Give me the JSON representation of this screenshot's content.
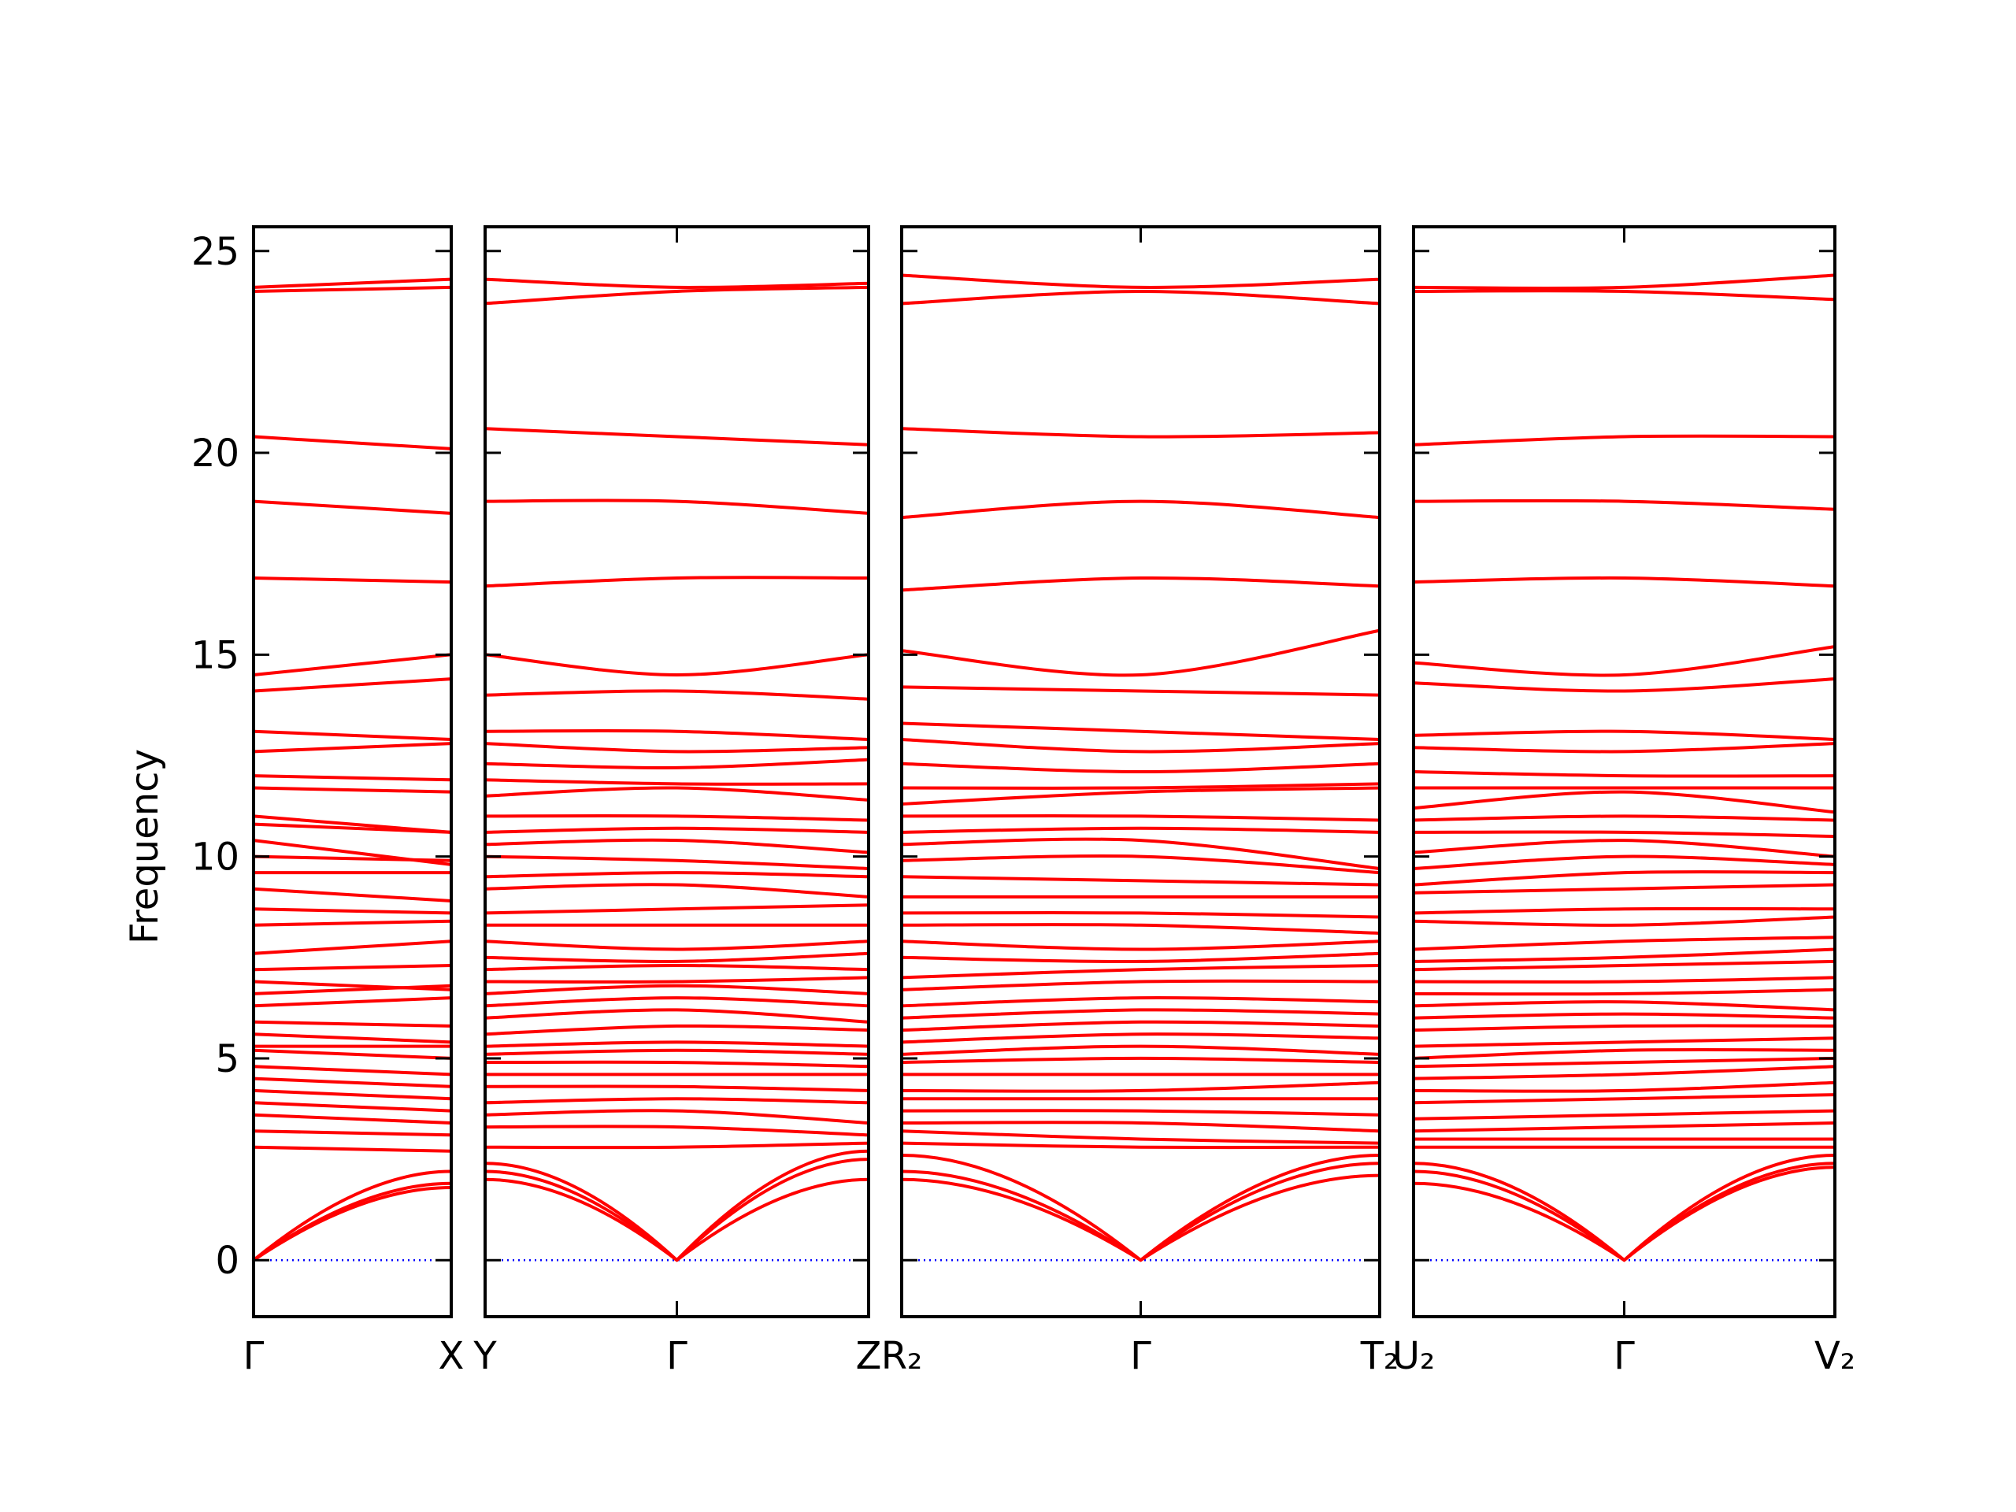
{
  "chart_data": {
    "type": "line",
    "ylabel": "Frequency",
    "ylim": [
      -1.4,
      25.6
    ],
    "yticks": [
      0,
      5,
      10,
      15,
      20,
      25
    ],
    "colors": {
      "band": "#ff0000",
      "zero_line": "#0000ff"
    },
    "panels": [
      {
        "labels": [
          "Γ",
          "X"
        ],
        "modes": [
          [
            24.1,
            24.3
          ],
          [
            24.0,
            24.1
          ],
          [
            20.4,
            20.1
          ],
          [
            18.8,
            18.5
          ],
          [
            16.9,
            16.8
          ],
          [
            14.5,
            15.0
          ],
          [
            14.1,
            14.4
          ],
          [
            13.1,
            12.9
          ],
          [
            12.6,
            12.8
          ],
          [
            12.0,
            11.9
          ],
          [
            11.7,
            11.6
          ],
          [
            11.0,
            10.6
          ],
          [
            10.8,
            10.6
          ],
          [
            10.4,
            9.8
          ],
          [
            10.0,
            9.9
          ],
          [
            9.6,
            9.6
          ],
          [
            9.2,
            8.9
          ],
          [
            8.7,
            8.6
          ],
          [
            8.3,
            8.4
          ],
          [
            7.6,
            7.9
          ],
          [
            7.2,
            7.3
          ],
          [
            6.9,
            6.7
          ],
          [
            6.6,
            6.8
          ],
          [
            6.3,
            6.5
          ],
          [
            5.9,
            5.8
          ],
          [
            5.6,
            5.4
          ],
          [
            5.3,
            5.3
          ],
          [
            5.2,
            5.0
          ],
          [
            4.8,
            4.6
          ],
          [
            4.5,
            4.3
          ],
          [
            4.2,
            4.0
          ],
          [
            3.9,
            3.7
          ],
          [
            3.6,
            3.4
          ],
          [
            3.2,
            3.1
          ],
          [
            2.8,
            2.7
          ],
          [
            0.0,
            2.2
          ],
          [
            0.0,
            1.9
          ],
          [
            0.0,
            1.8
          ]
        ]
      },
      {
        "labels": [
          "Y",
          "Γ",
          "Z"
        ],
        "modes": [
          [
            24.3,
            24.1,
            24.2
          ],
          [
            23.7,
            24.0,
            24.1
          ],
          [
            20.6,
            20.4,
            20.2
          ],
          [
            18.8,
            18.8,
            18.5
          ],
          [
            16.7,
            16.9,
            16.9
          ],
          [
            15.0,
            14.5,
            15.0
          ],
          [
            14.0,
            14.1,
            13.9
          ],
          [
            13.1,
            13.1,
            12.9
          ],
          [
            12.8,
            12.6,
            12.7
          ],
          [
            12.3,
            12.2,
            12.4
          ],
          [
            11.9,
            11.8,
            11.8
          ],
          [
            11.5,
            11.7,
            11.4
          ],
          [
            11.0,
            11.0,
            10.9
          ],
          [
            10.6,
            10.7,
            10.6
          ],
          [
            10.3,
            10.4,
            10.1
          ],
          [
            10.0,
            9.9,
            9.7
          ],
          [
            9.5,
            9.6,
            9.5
          ],
          [
            9.2,
            9.3,
            9.0
          ],
          [
            8.6,
            8.7,
            8.8
          ],
          [
            8.3,
            8.3,
            8.3
          ],
          [
            7.9,
            7.7,
            7.9
          ],
          [
            7.5,
            7.4,
            7.6
          ],
          [
            7.2,
            7.3,
            7.2
          ],
          [
            6.9,
            6.9,
            7.0
          ],
          [
            6.6,
            6.8,
            6.6
          ],
          [
            6.3,
            6.5,
            6.3
          ],
          [
            6.0,
            6.2,
            5.9
          ],
          [
            5.6,
            5.8,
            5.7
          ],
          [
            5.3,
            5.4,
            5.3
          ],
          [
            5.1,
            5.2,
            5.1
          ],
          [
            4.9,
            4.9,
            4.8
          ],
          [
            4.6,
            4.6,
            4.6
          ],
          [
            4.3,
            4.3,
            4.2
          ],
          [
            3.9,
            4.0,
            3.9
          ],
          [
            3.6,
            3.7,
            3.4
          ],
          [
            3.3,
            3.3,
            3.1
          ],
          [
            2.8,
            2.8,
            2.9
          ],
          [
            2.4,
            0.0,
            2.7
          ],
          [
            2.2,
            0.0,
            2.5
          ],
          [
            2.0,
            0.0,
            2.0
          ]
        ]
      },
      {
        "labels": [
          "R₂",
          "Γ",
          "T₂"
        ],
        "modes": [
          [
            24.4,
            24.1,
            24.3
          ],
          [
            23.7,
            24.0,
            23.7
          ],
          [
            20.6,
            20.4,
            20.5
          ],
          [
            18.4,
            18.8,
            18.4
          ],
          [
            16.6,
            16.9,
            16.7
          ],
          [
            15.1,
            14.5,
            15.6
          ],
          [
            14.2,
            14.1,
            14.0
          ],
          [
            13.3,
            13.1,
            12.9
          ],
          [
            12.9,
            12.6,
            12.8
          ],
          [
            12.3,
            12.1,
            12.3
          ],
          [
            11.7,
            11.7,
            11.8
          ],
          [
            11.3,
            11.6,
            11.7
          ],
          [
            11.0,
            11.0,
            10.9
          ],
          [
            10.6,
            10.7,
            10.6
          ],
          [
            10.3,
            10.4,
            9.7
          ],
          [
            9.9,
            10.0,
            9.6
          ],
          [
            9.5,
            9.4,
            9.3
          ],
          [
            9.0,
            9.0,
            9.0
          ],
          [
            8.6,
            8.6,
            8.5
          ],
          [
            8.3,
            8.3,
            8.1
          ],
          [
            7.9,
            7.7,
            7.9
          ],
          [
            7.5,
            7.4,
            7.6
          ],
          [
            7.0,
            7.2,
            7.3
          ],
          [
            6.7,
            6.9,
            6.9
          ],
          [
            6.3,
            6.5,
            6.4
          ],
          [
            6.0,
            6.2,
            6.1
          ],
          [
            5.7,
            5.9,
            5.8
          ],
          [
            5.4,
            5.6,
            5.5
          ],
          [
            5.1,
            5.3,
            5.1
          ],
          [
            4.9,
            5.0,
            4.9
          ],
          [
            4.6,
            4.6,
            4.6
          ],
          [
            4.2,
            4.2,
            4.4
          ],
          [
            4.0,
            4.0,
            4.0
          ],
          [
            3.7,
            3.7,
            3.6
          ],
          [
            3.4,
            3.4,
            3.2
          ],
          [
            3.2,
            3.0,
            2.9
          ],
          [
            2.9,
            2.8,
            2.8
          ],
          [
            2.6,
            0.0,
            2.6
          ],
          [
            2.2,
            0.0,
            2.4
          ],
          [
            2.0,
            0.0,
            2.1
          ]
        ]
      },
      {
        "labels": [
          "U₂",
          "Γ",
          "V₂"
        ],
        "modes": [
          [
            24.1,
            24.1,
            24.4
          ],
          [
            24.0,
            24.0,
            23.8
          ],
          [
            20.2,
            20.4,
            20.4
          ],
          [
            18.8,
            18.8,
            18.6
          ],
          [
            16.8,
            16.9,
            16.7
          ],
          [
            14.8,
            14.5,
            15.2
          ],
          [
            14.3,
            14.1,
            14.4
          ],
          [
            13.0,
            13.1,
            12.9
          ],
          [
            12.7,
            12.6,
            12.8
          ],
          [
            12.1,
            12.0,
            12.0
          ],
          [
            11.7,
            11.7,
            11.7
          ],
          [
            11.2,
            11.6,
            11.1
          ],
          [
            10.9,
            11.0,
            10.9
          ],
          [
            10.6,
            10.6,
            10.5
          ],
          [
            10.1,
            10.4,
            10.0
          ],
          [
            9.7,
            10.0,
            9.8
          ],
          [
            9.3,
            9.6,
            9.6
          ],
          [
            9.1,
            9.2,
            9.3
          ],
          [
            8.6,
            8.7,
            8.7
          ],
          [
            8.4,
            8.3,
            8.5
          ],
          [
            7.7,
            7.9,
            8.0
          ],
          [
            7.4,
            7.5,
            7.7
          ],
          [
            7.2,
            7.3,
            7.4
          ],
          [
            6.9,
            6.9,
            7.0
          ],
          [
            6.6,
            6.6,
            6.7
          ],
          [
            6.3,
            6.4,
            6.2
          ],
          [
            6.0,
            6.1,
            6.0
          ],
          [
            5.7,
            5.8,
            5.8
          ],
          [
            5.3,
            5.4,
            5.5
          ],
          [
            5.0,
            5.2,
            5.2
          ],
          [
            4.8,
            4.9,
            5.0
          ],
          [
            4.5,
            4.6,
            4.8
          ],
          [
            4.2,
            4.2,
            4.4
          ],
          [
            3.9,
            4.0,
            4.1
          ],
          [
            3.5,
            3.6,
            3.7
          ],
          [
            3.2,
            3.3,
            3.4
          ],
          [
            3.0,
            3.0,
            3.0
          ],
          [
            2.8,
            2.8,
            2.8
          ],
          [
            2.4,
            0.0,
            2.6
          ],
          [
            2.2,
            0.0,
            2.4
          ],
          [
            1.9,
            0.0,
            2.3
          ]
        ]
      }
    ]
  }
}
